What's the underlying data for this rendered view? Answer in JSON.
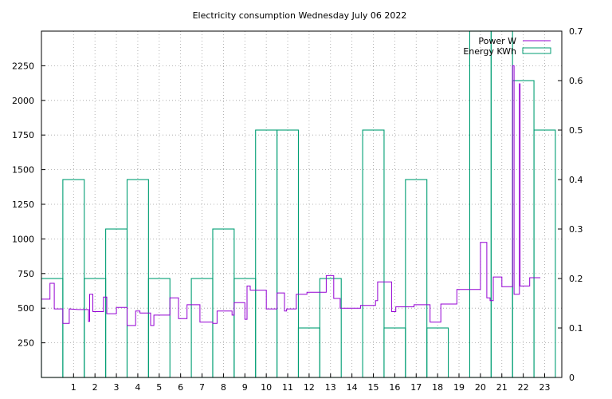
{
  "chart_data": {
    "type": "line",
    "title": "Electricity consumption Wednesday July 06 2022",
    "xlabel": "",
    "ylabel": "",
    "y2label": "",
    "grid": true,
    "legend_position": "top-right",
    "x_ticks": [
      "1",
      "2",
      "3",
      "4",
      "5",
      "6",
      "7",
      "8",
      "9",
      "10",
      "11",
      "12",
      "13",
      "14",
      "15",
      "16",
      "17",
      "18",
      "19",
      "20",
      "21",
      "22",
      "23"
    ],
    "y_ticks": [
      "250",
      "500",
      "750",
      "1000",
      "1250",
      "1500",
      "1750",
      "2000",
      "2250"
    ],
    "y2_ticks": [
      "0",
      "0.1",
      "0.2",
      "0.3",
      "0.4",
      "0.5",
      "0.6",
      "0.7"
    ],
    "xlim": [
      -0.5,
      23.8
    ],
    "ylim": [
      0,
      2500
    ],
    "y2lim": [
      0,
      0.7
    ],
    "series": [
      {
        "name": "Power W",
        "axis": "y",
        "style": "steps",
        "color": "#9400d3",
        "points": [
          [
            -0.5,
            565
          ],
          [
            -0.1,
            565
          ],
          [
            -0.1,
            680
          ],
          [
            0.1,
            680
          ],
          [
            0.1,
            495
          ],
          [
            0.5,
            495
          ],
          [
            0.5,
            390
          ],
          [
            0.8,
            390
          ],
          [
            0.8,
            495
          ],
          [
            1.2,
            490
          ],
          [
            1.7,
            490
          ],
          [
            1.7,
            405
          ],
          [
            1.75,
            405
          ],
          [
            1.75,
            600
          ],
          [
            1.9,
            600
          ],
          [
            1.9,
            475
          ],
          [
            2.4,
            475
          ],
          [
            2.4,
            580
          ],
          [
            2.55,
            580
          ],
          [
            2.55,
            460
          ],
          [
            3.0,
            460
          ],
          [
            3.0,
            505
          ],
          [
            3.5,
            505
          ],
          [
            3.5,
            375
          ],
          [
            3.9,
            375
          ],
          [
            3.9,
            480
          ],
          [
            4.1,
            480
          ],
          [
            4.1,
            465
          ],
          [
            4.6,
            465
          ],
          [
            4.6,
            375
          ],
          [
            4.75,
            375
          ],
          [
            4.75,
            450
          ],
          [
            5.5,
            450
          ],
          [
            5.5,
            575
          ],
          [
            5.9,
            575
          ],
          [
            5.9,
            425
          ],
          [
            6.3,
            425
          ],
          [
            6.3,
            525
          ],
          [
            6.9,
            525
          ],
          [
            6.9,
            400
          ],
          [
            7.5,
            400
          ],
          [
            7.5,
            390
          ],
          [
            7.7,
            390
          ],
          [
            7.7,
            480
          ],
          [
            8.4,
            480
          ],
          [
            8.4,
            450
          ],
          [
            8.5,
            450
          ],
          [
            8.5,
            540
          ],
          [
            9.0,
            540
          ],
          [
            9.0,
            420
          ],
          [
            9.1,
            420
          ],
          [
            9.1,
            660
          ],
          [
            9.25,
            660
          ],
          [
            9.25,
            630
          ],
          [
            10.0,
            630
          ],
          [
            10.0,
            495
          ],
          [
            10.5,
            495
          ],
          [
            10.5,
            610
          ],
          [
            10.85,
            610
          ],
          [
            10.85,
            480
          ],
          [
            10.95,
            480
          ],
          [
            10.95,
            495
          ],
          [
            11.4,
            495
          ],
          [
            11.4,
            600
          ],
          [
            11.9,
            600
          ],
          [
            11.9,
            615
          ],
          [
            12.8,
            615
          ],
          [
            12.8,
            735
          ],
          [
            13.15,
            735
          ],
          [
            13.15,
            570
          ],
          [
            13.45,
            570
          ],
          [
            13.45,
            500
          ],
          [
            14.4,
            500
          ],
          [
            14.4,
            520
          ],
          [
            15.1,
            520
          ],
          [
            15.1,
            555
          ],
          [
            15.2,
            555
          ],
          [
            15.2,
            690
          ],
          [
            15.85,
            690
          ],
          [
            15.85,
            475
          ],
          [
            16.05,
            475
          ],
          [
            16.05,
            510
          ],
          [
            16.9,
            510
          ],
          [
            16.9,
            525
          ],
          [
            17.65,
            525
          ],
          [
            17.65,
            400
          ],
          [
            18.15,
            400
          ],
          [
            18.15,
            530
          ],
          [
            18.9,
            530
          ],
          [
            18.9,
            635
          ],
          [
            20.0,
            635
          ],
          [
            20.0,
            975
          ],
          [
            20.3,
            975
          ],
          [
            20.3,
            575
          ],
          [
            20.45,
            575
          ],
          [
            20.45,
            555
          ],
          [
            20.6,
            555
          ],
          [
            20.6,
            725
          ],
          [
            21.0,
            725
          ],
          [
            21.0,
            655
          ],
          [
            21.5,
            655
          ],
          [
            21.5,
            2250
          ],
          [
            21.57,
            2250
          ],
          [
            21.57,
            600
          ],
          [
            21.82,
            600
          ],
          [
            21.82,
            2120
          ],
          [
            21.85,
            2120
          ],
          [
            21.85,
            660
          ],
          [
            22.3,
            660
          ],
          [
            22.3,
            720
          ],
          [
            22.8,
            720
          ]
        ]
      },
      {
        "name": "Energy KWh",
        "axis": "y2",
        "style": "histeps",
        "color": "#009e73",
        "x": [
          0,
          1,
          2,
          3,
          4,
          5,
          6,
          7,
          8,
          9,
          10,
          11,
          12,
          13,
          14,
          15,
          16,
          17,
          18,
          19,
          20,
          21,
          22,
          23
        ],
        "values": [
          0.2,
          0.4,
          0.2,
          0.3,
          0.4,
          0.2,
          0,
          0.2,
          0.3,
          0.2,
          0.5,
          0.5,
          0.1,
          0.2,
          0,
          0.5,
          0.1,
          0.4,
          0.1,
          0,
          0.7,
          0.7,
          0.6,
          0.5
        ]
      }
    ]
  }
}
